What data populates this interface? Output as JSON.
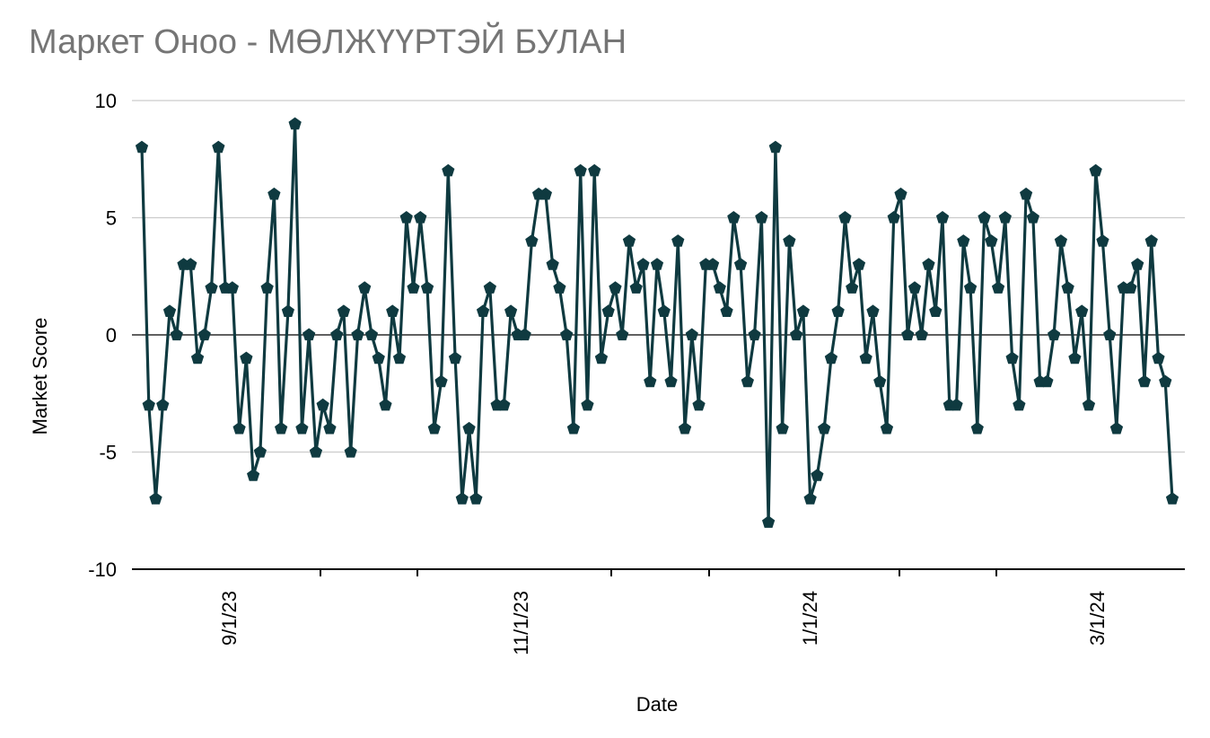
{
  "chart_data": {
    "type": "line",
    "title": "Маркет Оноо - МӨЛЖҮҮРТЭЙ БУЛАН",
    "xlabel": "Date",
    "ylabel": "Market Score",
    "ylim": [
      -10,
      10
    ],
    "y_ticks": [
      "10",
      "5",
      "0",
      "-5",
      "-10"
    ],
    "x_tick_labels": [
      "9/1/23",
      "11/1/23",
      "1/1/24",
      "3/1/24"
    ],
    "grid": "horizontal",
    "legend": "none",
    "colors": {
      "series": "#0f3a40",
      "grid": "#cccccc",
      "axis": "#000000",
      "title": "#757575"
    },
    "series": [
      {
        "values": [
          8,
          -3,
          -7,
          -3,
          1,
          0,
          3,
          3,
          -1,
          0,
          2,
          8,
          2,
          2,
          -4,
          -1,
          -6,
          -5,
          2,
          6,
          -4,
          1,
          9,
          -4,
          0,
          -5,
          -3,
          -4,
          0,
          1,
          -5,
          0,
          2,
          0,
          -1,
          -3,
          1,
          -1,
          5,
          2,
          5,
          2,
          -4,
          -2,
          7,
          -1,
          -7,
          -4,
          -7,
          1,
          2,
          -3,
          -3,
          1,
          0,
          0,
          4,
          6,
          6,
          3,
          2,
          0,
          -4,
          7,
          -3,
          7,
          -1,
          1,
          2,
          0,
          4,
          2,
          3,
          -2,
          3,
          1,
          -2,
          4,
          -4,
          0,
          -3,
          3,
          3,
          2,
          1,
          5,
          3,
          -2,
          0,
          5,
          -8,
          8,
          -4,
          4,
          0,
          1,
          -7,
          -6,
          -4,
          -1,
          1,
          5,
          2,
          3,
          -1,
          1,
          -2,
          -4,
          5,
          6,
          0,
          2,
          0,
          3,
          1,
          5,
          -3,
          -3,
          4,
          2,
          -4,
          5,
          4,
          2,
          5,
          -1,
          -3,
          6,
          5,
          -2,
          -2,
          0,
          4,
          2,
          -1,
          1,
          -3,
          7,
          4,
          0,
          -4,
          2,
          2,
          3,
          -2,
          4,
          -1,
          -2,
          -7
        ]
      }
    ]
  }
}
